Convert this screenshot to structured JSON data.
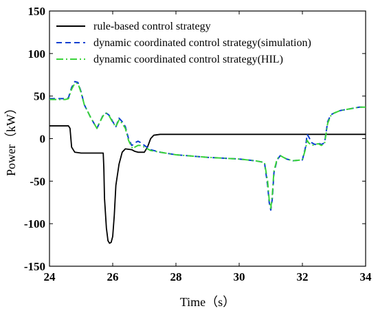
{
  "chart_data": {
    "type": "line",
    "xlabel": "Time（s）",
    "ylabel": "Power（kW）",
    "xlim": [
      24,
      34
    ],
    "ylim": [
      -150,
      150
    ],
    "xticks": [
      24,
      26,
      28,
      30,
      32,
      34
    ],
    "yticks": [
      -150,
      -100,
      -50,
      0,
      50,
      100,
      150
    ],
    "legend_position": "top-left",
    "series": [
      {
        "name": "rule-based control strategy",
        "color": "#000000",
        "dash": "solid",
        "x": [
          24.0,
          24.6,
          24.65,
          24.7,
          24.8,
          25.0,
          25.4,
          25.7,
          25.72,
          25.74,
          25.8,
          25.85,
          25.9,
          25.95,
          26.0,
          26.05,
          26.1,
          26.2,
          26.3,
          26.4,
          26.6,
          26.7,
          26.8,
          26.9,
          27.0,
          27.1,
          27.2,
          27.3,
          27.5,
          28.0,
          30.0,
          32.0,
          34.0
        ],
        "y": [
          15,
          15,
          12,
          -10,
          -16,
          -17,
          -17,
          -17,
          -35,
          -70,
          -105,
          -120,
          -123,
          -122,
          -115,
          -90,
          -55,
          -30,
          -16,
          -12,
          -13,
          -15,
          -16,
          -16,
          -16,
          -10,
          0,
          4,
          5,
          5,
          5,
          5,
          5
        ]
      },
      {
        "name": "dynamic coordinated control strategy(simulation)",
        "color": "#0a3fd0",
        "dash": "dashed",
        "x": [
          24.0,
          24.5,
          24.6,
          24.7,
          24.8,
          24.9,
          25.0,
          25.1,
          25.3,
          25.5,
          25.6,
          25.7,
          25.8,
          25.9,
          26.0,
          26.1,
          26.2,
          26.3,
          26.4,
          26.5,
          26.6,
          26.65,
          26.7,
          26.8,
          26.9,
          27.0,
          27.2,
          27.5,
          28.0,
          29.0,
          30.0,
          30.5,
          30.8,
          30.9,
          30.95,
          31.0,
          31.05,
          31.1,
          31.2,
          31.3,
          31.4,
          31.5,
          31.7,
          32.0,
          32.1,
          32.15,
          32.2,
          32.3,
          32.4,
          32.5,
          32.6,
          32.7,
          32.8,
          32.9,
          33.0,
          33.2,
          33.5,
          33.8,
          34.0
        ],
        "y": [
          47,
          47,
          48,
          60,
          67,
          66,
          55,
          40,
          25,
          12,
          20,
          28,
          30,
          27,
          20,
          14,
          24,
          20,
          14,
          0,
          -8,
          -7,
          -5,
          -3,
          -5,
          -8,
          -13,
          -16,
          -19,
          -22,
          -24,
          -26,
          -28,
          -55,
          -75,
          -84,
          -70,
          -40,
          -25,
          -20,
          -22,
          -24,
          -26,
          -25,
          -10,
          5,
          2,
          -5,
          -7,
          -5,
          -7,
          -5,
          20,
          28,
          30,
          33,
          35,
          37,
          37
        ]
      },
      {
        "name": "dynamic coordinated control strategy(HIL)",
        "color": "#39d339",
        "dash": "dashdot",
        "x": [
          24.0,
          24.5,
          24.6,
          24.7,
          24.8,
          24.9,
          25.0,
          25.1,
          25.3,
          25.5,
          25.6,
          25.7,
          25.8,
          25.9,
          26.0,
          26.1,
          26.2,
          26.3,
          26.4,
          26.5,
          26.6,
          26.65,
          26.7,
          26.8,
          26.9,
          27.0,
          27.2,
          27.5,
          28.0,
          29.0,
          30.0,
          30.5,
          30.8,
          30.9,
          30.95,
          31.0,
          31.05,
          31.1,
          31.2,
          31.3,
          31.4,
          31.5,
          31.7,
          32.0,
          32.1,
          32.15,
          32.2,
          32.3,
          32.4,
          32.5,
          32.6,
          32.7,
          32.8,
          32.9,
          33.0,
          33.2,
          33.5,
          33.8,
          34.0
        ],
        "y": [
          46,
          46,
          47,
          58,
          65,
          65,
          54,
          40,
          25,
          12,
          20,
          27,
          30,
          26,
          19,
          14,
          22,
          18,
          12,
          -2,
          -10,
          -12,
          -10,
          -8,
          -8,
          -10,
          -14,
          -16,
          -19,
          -22,
          -24,
          -26,
          -28,
          -50,
          -72,
          -82,
          -65,
          -38,
          -24,
          -20,
          -22,
          -24,
          -26,
          -25,
          -12,
          -2,
          -5,
          -8,
          -7,
          -6,
          -8,
          -6,
          18,
          27,
          30,
          33,
          35,
          37,
          37
        ]
      }
    ]
  }
}
